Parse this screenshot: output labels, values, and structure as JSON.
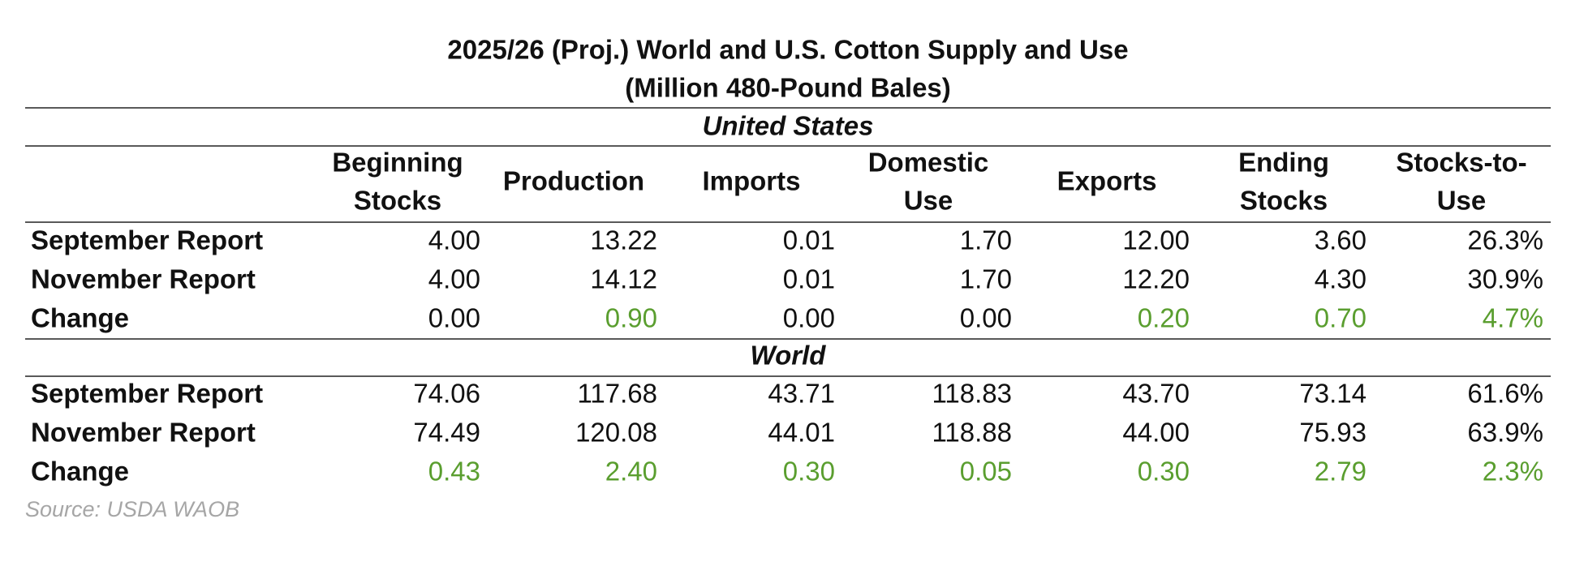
{
  "title": [
    "2025/26 (Proj.) World and U.S. Cotton Supply and Use",
    "(Million 480-Pound Bales)"
  ],
  "table": {
    "columns": [
      [
        "Beginning",
        "Stocks"
      ],
      [
        "Production"
      ],
      [
        "Imports"
      ],
      [
        "Domestic",
        "Use"
      ],
      [
        "Exports"
      ],
      [
        "Ending",
        "Stocks"
      ],
      [
        "Stocks-to-",
        "Use"
      ]
    ],
    "sections": [
      {
        "name": "United States",
        "rows": [
          {
            "label": "September Report",
            "values": [
              "4.00",
              "13.22",
              "0.01",
              "1.70",
              "12.00",
              "3.60",
              "26.3%"
            ]
          },
          {
            "label": "November Report",
            "values": [
              "4.00",
              "14.12",
              "0.01",
              "1.70",
              "12.20",
              "4.30",
              "30.9%"
            ]
          },
          {
            "label": "Change",
            "values": [
              "0.00",
              "0.90",
              "0.00",
              "0.00",
              "0.20",
              "0.70",
              "4.7%"
            ]
          }
        ]
      },
      {
        "name": "World",
        "rows": [
          {
            "label": "September Report",
            "values": [
              "74.06",
              "117.68",
              "43.71",
              "118.83",
              "43.70",
              "73.14",
              "61.6%"
            ]
          },
          {
            "label": "November Report",
            "values": [
              "74.49",
              "120.08",
              "44.01",
              "118.88",
              "44.00",
              "75.93",
              "63.9%"
            ]
          },
          {
            "label": "Change",
            "values": [
              "0.43",
              "2.40",
              "0.30",
              "0.05",
              "0.30",
              "2.79",
              "2.3%"
            ]
          }
        ]
      }
    ]
  },
  "source": "Source: USDA WAOB"
}
